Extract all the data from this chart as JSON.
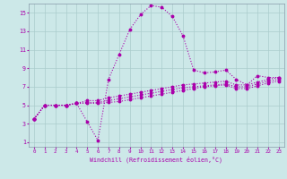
{
  "xlabel": "Windchill (Refroidissement éolien,°C)",
  "background_color": "#cce8e8",
  "grid_color": "#aacccc",
  "line_color": "#aa00aa",
  "spine_color": "#8899aa",
  "xlim": [
    -0.5,
    23.5
  ],
  "ylim": [
    0.5,
    16.0
  ],
  "xticks": [
    0,
    1,
    2,
    3,
    4,
    5,
    6,
    7,
    8,
    9,
    10,
    11,
    12,
    13,
    14,
    15,
    16,
    17,
    18,
    19,
    20,
    21,
    22,
    23
  ],
  "yticks": [
    1,
    3,
    5,
    7,
    9,
    11,
    13,
    15
  ],
  "series_main": [
    3.5,
    5.0,
    5.0,
    5.0,
    5.2,
    3.2,
    1.2,
    7.8,
    10.5,
    13.2,
    14.8,
    15.8,
    15.6,
    14.6,
    12.5,
    8.8,
    8.5,
    8.6,
    8.8,
    7.8,
    7.2,
    8.2,
    8.0,
    8.0
  ],
  "series_2": [
    3.5,
    5.0,
    5.0,
    5.0,
    5.2,
    5.5,
    5.5,
    5.8,
    6.0,
    6.2,
    6.4,
    6.6,
    6.8,
    7.0,
    7.2,
    7.3,
    7.4,
    7.5,
    7.6,
    7.2,
    7.2,
    7.5,
    7.8,
    8.0
  ],
  "series_3": [
    3.5,
    5.0,
    5.0,
    5.0,
    5.2,
    5.3,
    5.3,
    5.5,
    5.7,
    5.9,
    6.1,
    6.3,
    6.5,
    6.7,
    6.9,
    7.0,
    7.1,
    7.2,
    7.3,
    7.0,
    7.0,
    7.3,
    7.6,
    7.8
  ],
  "series_4": [
    3.5,
    5.0,
    5.0,
    5.0,
    5.2,
    5.2,
    5.2,
    5.3,
    5.4,
    5.6,
    5.8,
    6.0,
    6.2,
    6.4,
    6.6,
    6.8,
    7.0,
    7.1,
    7.2,
    6.8,
    6.8,
    7.1,
    7.4,
    7.6
  ]
}
